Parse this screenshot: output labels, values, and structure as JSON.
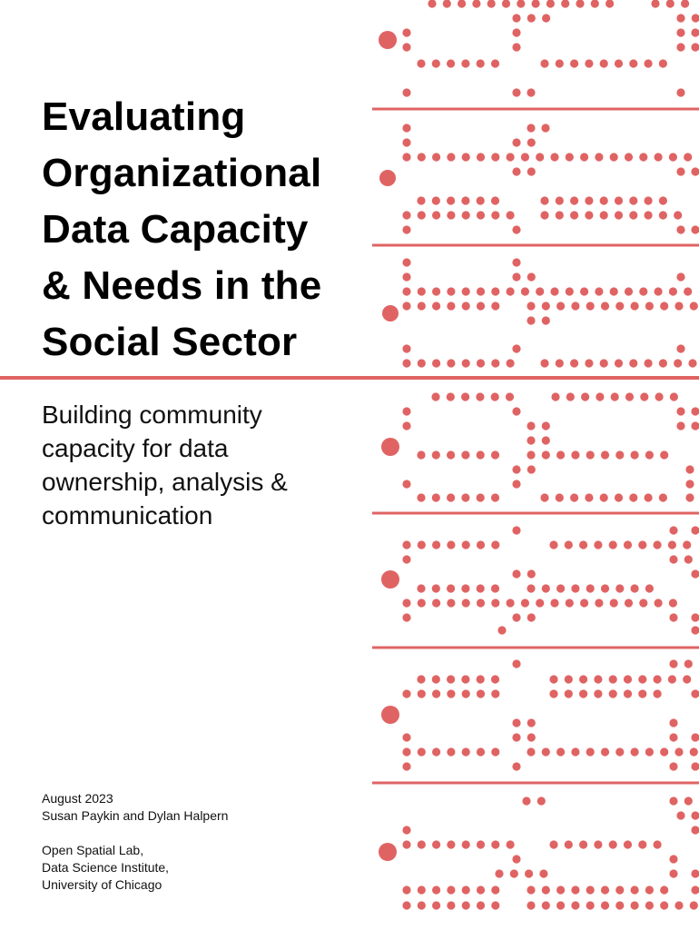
{
  "cover": {
    "title_lines": [
      "Evaluating",
      "Organizational",
      "Data Capacity",
      "& Needs in the",
      "Social Sector"
    ],
    "subtitle_lines": [
      "Building community",
      "capacity for data",
      "ownership, analysis &",
      "communication"
    ],
    "date": "August 2023",
    "authors": "Susan Paykin and Dylan Halpern",
    "affiliation_lines": [
      "Open Spatial Lab,",
      "Data Science Institute,",
      "University of Chicago"
    ]
  },
  "colors": {
    "accent": "#e06363",
    "text": "#111111",
    "background": "#ffffff"
  },
  "art": {
    "motif": "punched-card dot pattern"
  }
}
